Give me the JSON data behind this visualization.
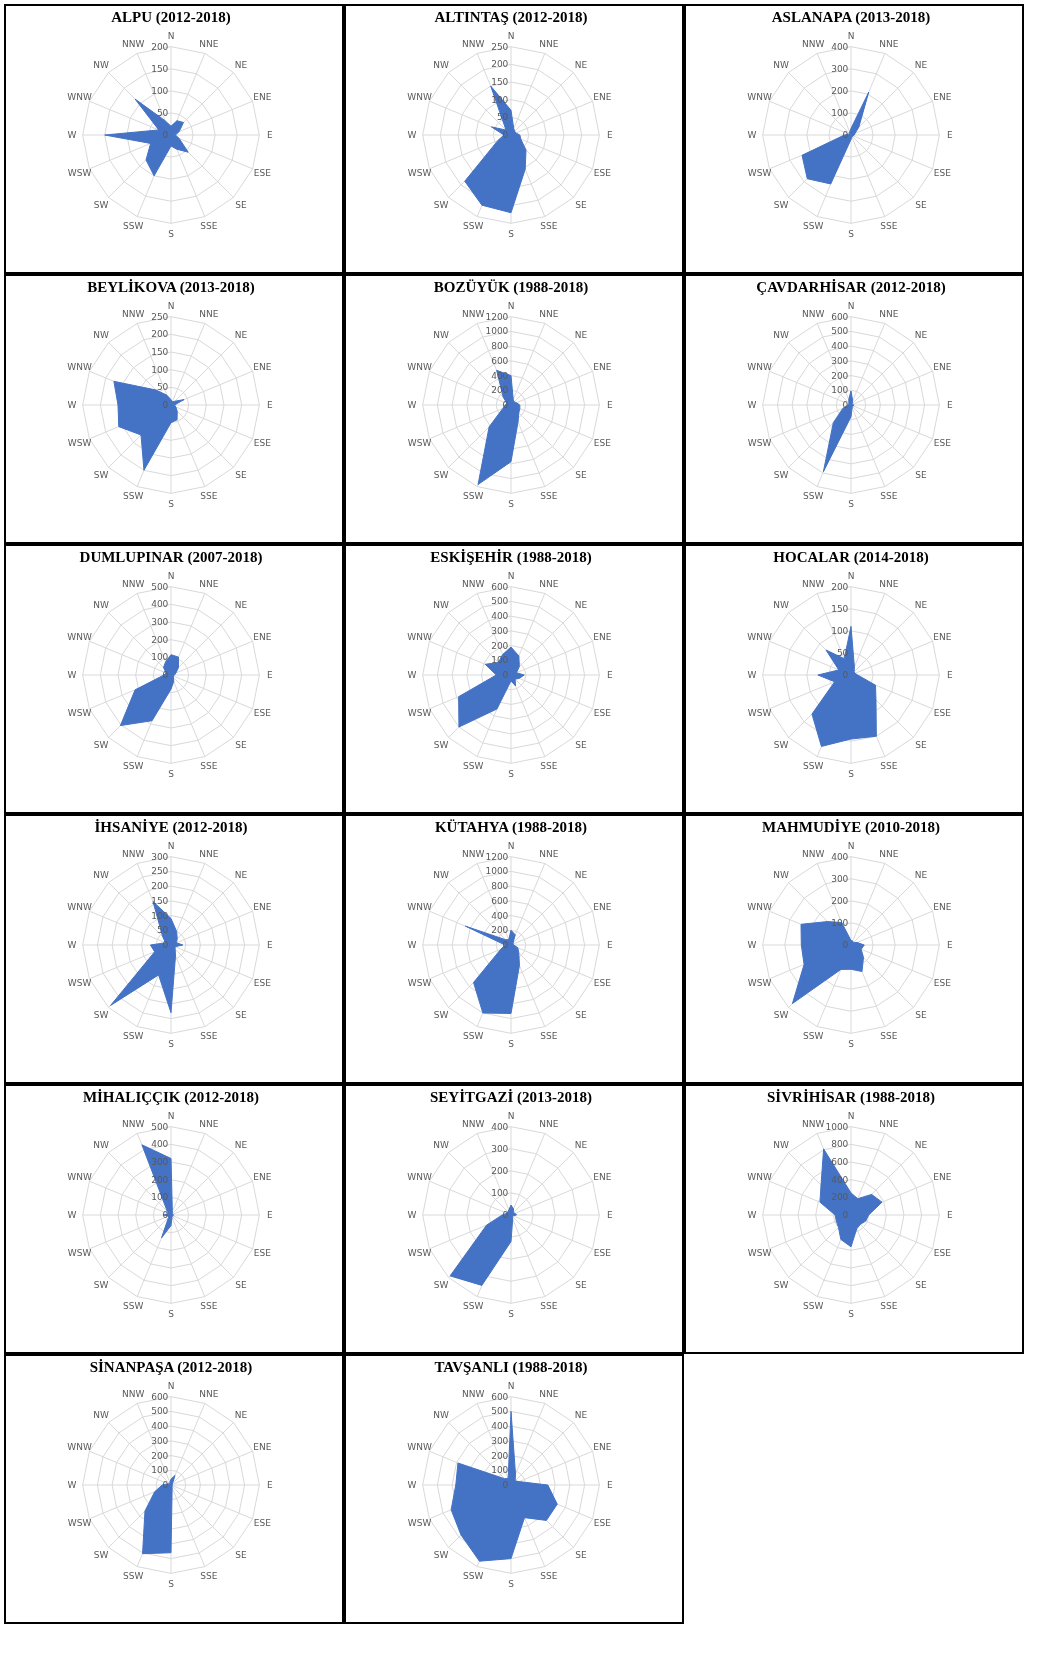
{
  "chart_data": [
    {
      "type": "radar",
      "title": "ALPU  (2012-2018)",
      "categories": [
        "N",
        "NNE",
        "NE",
        "ENE",
        "E",
        "ESE",
        "SE",
        "SSE",
        "S",
        "SSW",
        "SW",
        "WSW",
        "W",
        "WNW",
        "NW",
        "NNW"
      ],
      "series": [
        {
          "color": "#4472c4",
          "values": [
            20,
            35,
            40,
            20,
            10,
            20,
            55,
            35,
            25,
            100,
            80,
            50,
            150,
            30,
            115,
            35
          ]
        }
      ],
      "ylim": [
        0,
        200
      ],
      "yticks": [
        0,
        50,
        100,
        150,
        200
      ],
      "grid": true
    },
    {
      "type": "radar",
      "title": "ALTINTAŞ (2012-2018)",
      "categories": [
        "N",
        "NNE",
        "NE",
        "ENE",
        "E",
        "ESE",
        "SE",
        "SSE",
        "S",
        "SSW",
        "SW",
        "WSW",
        "W",
        "WNW",
        "NW",
        "NNW"
      ],
      "series": [
        {
          "color": "#4472c4",
          "values": [
            70,
            20,
            15,
            15,
            25,
            30,
            60,
            105,
            220,
            215,
            185,
            40,
            20,
            60,
            20,
            150
          ]
        }
      ],
      "ylim": [
        0,
        250
      ],
      "yticks": [
        0,
        50,
        100,
        150,
        200,
        250
      ],
      "grid": true
    },
    {
      "type": "radar",
      "title": "ASLANAPA (2013-2018)",
      "categories": [
        "N",
        "NNE",
        "NE",
        "ENE",
        "E",
        "ESE",
        "SE",
        "SSE",
        "S",
        "SSW",
        "SW",
        "WSW",
        "W",
        "WNW",
        "NW",
        "NNW"
      ],
      "series": [
        {
          "color": "#4472c4",
          "values": [
            30,
            210,
            50,
            20,
            15,
            10,
            10,
            10,
            20,
            240,
            280,
            240,
            30,
            10,
            10,
            15
          ]
        }
      ],
      "ylim": [
        0,
        400
      ],
      "yticks": [
        0,
        100,
        200,
        300,
        400
      ],
      "grid": true
    },
    {
      "type": "radar",
      "title": "BEYLİKOVA  (2013-2018)",
      "categories": [
        "N",
        "NNE",
        "NE",
        "ENE",
        "E",
        "ESE",
        "SE",
        "SSE",
        "S",
        "SSW",
        "SW",
        "WSW",
        "W",
        "WNW",
        "NW",
        "NNW"
      ],
      "series": [
        {
          "color": "#4472c4",
          "values": [
            15,
            10,
            15,
            40,
            10,
            15,
            25,
            45,
            50,
            200,
            120,
            160,
            150,
            175,
            60,
            30
          ]
        }
      ],
      "ylim": [
        0,
        250
      ],
      "yticks": [
        0,
        50,
        100,
        150,
        200,
        250
      ],
      "grid": true
    },
    {
      "type": "radar",
      "title": "BOZÜYÜK  (1988-2018)",
      "categories": [
        "N",
        "NNE",
        "NE",
        "ENE",
        "E",
        "ESE",
        "SE",
        "SSE",
        "S",
        "SSW",
        "SW",
        "WSW",
        "W",
        "WNW",
        "NW",
        "NNW"
      ],
      "series": [
        {
          "color": "#4472c4",
          "values": [
            400,
            80,
            60,
            80,
            120,
            130,
            150,
            250,
            770,
            1170,
            420,
            120,
            80,
            60,
            150,
            510
          ]
        }
      ],
      "ylim": [
        0,
        1200
      ],
      "yticks": [
        0,
        200,
        400,
        600,
        800,
        1000,
        1200
      ],
      "grid": true
    },
    {
      "type": "radar",
      "title": "ÇAVDARHİSAR (2012-2018)",
      "categories": [
        "N",
        "NNE",
        "NE",
        "ENE",
        "E",
        "ESE",
        "SE",
        "SSE",
        "S",
        "SSW",
        "SW",
        "WSW",
        "W",
        "WNW",
        "NW",
        "NNW"
      ],
      "series": [
        {
          "color": "#4472c4",
          "values": [
            95,
            30,
            10,
            10,
            20,
            15,
            15,
            20,
            80,
            490,
            170,
            60,
            20,
            15,
            20,
            40
          ]
        }
      ],
      "ylim": [
        0,
        600
      ],
      "yticks": [
        0,
        100,
        200,
        300,
        400,
        500,
        600
      ],
      "grid": true
    },
    {
      "type": "radar",
      "title": "DUMLUPINAR (2007-2018)",
      "categories": [
        "N",
        "NNE",
        "NE",
        "ENE",
        "E",
        "ESE",
        "SE",
        "SSE",
        "S",
        "SSW",
        "SW",
        "WSW",
        "W",
        "WNW",
        "NW",
        "NNW"
      ],
      "series": [
        {
          "color": "#4472c4",
          "values": [
            115,
            110,
            60,
            30,
            20,
            15,
            20,
            40,
            80,
            280,
            405,
            220,
            40,
            30,
            60,
            80
          ]
        }
      ],
      "ylim": [
        0,
        500
      ],
      "yticks": [
        0,
        100,
        200,
        300,
        400,
        500
      ],
      "grid": true
    },
    {
      "type": "radar",
      "title": "ESKİŞEHİR (1988-2018)",
      "categories": [
        "N",
        "NNE",
        "NE",
        "ENE",
        "E",
        "ESE",
        "SE",
        "SSE",
        "S",
        "SSW",
        "SW",
        "WSW",
        "W",
        "WNW",
        "NW",
        "NNW"
      ],
      "series": [
        {
          "color": "#4472c4",
          "values": [
            190,
            140,
            80,
            40,
            90,
            60,
            40,
            80,
            40,
            250,
            500,
            385,
            100,
            190,
            120,
            150
          ]
        }
      ],
      "ylim": [
        0,
        600
      ],
      "yticks": [
        0,
        100,
        200,
        300,
        400,
        500,
        600
      ],
      "grid": true
    },
    {
      "type": "radar",
      "title": "HOCALAR  (2014-2018)",
      "categories": [
        "N",
        "NNE",
        "NE",
        "ENE",
        "E",
        "ESE",
        "SE",
        "SSE",
        "S",
        "SSW",
        "SW",
        "WSW",
        "W",
        "WNW",
        "NW",
        "NNW"
      ],
      "series": [
        {
          "color": "#4472c4",
          "values": [
            110,
            20,
            10,
            10,
            15,
            60,
            80,
            150,
            145,
            175,
            125,
            40,
            75,
            30,
            80,
            40
          ]
        }
      ],
      "ylim": [
        0,
        200
      ],
      "yticks": [
        0,
        50,
        100,
        150,
        200
      ],
      "grid": true
    },
    {
      "type": "radar",
      "title": "İHSANİYE  (2012-2018)",
      "categories": [
        "N",
        "NNE",
        "NE",
        "ENE",
        "E",
        "ESE",
        "SE",
        "SSE",
        "S",
        "SSW",
        "SW",
        "WSW",
        "W",
        "WNW",
        "NW",
        "NNW"
      ],
      "series": [
        {
          "color": "#4472c4",
          "values": [
            90,
            50,
            30,
            20,
            40,
            15,
            20,
            40,
            230,
            110,
            290,
            60,
            70,
            20,
            40,
            160
          ]
        }
      ],
      "ylim": [
        0,
        300
      ],
      "yticks": [
        0,
        50,
        100,
        150,
        200,
        250,
        300
      ],
      "grid": true
    },
    {
      "type": "radar",
      "title": "KÜTAHYA  (1988-2018)",
      "categories": [
        "N",
        "NNE",
        "NE",
        "ENE",
        "E",
        "ESE",
        "SE",
        "SSE",
        "S",
        "SSW",
        "SW",
        "WSW",
        "W",
        "WNW",
        "NW",
        "NNW"
      ],
      "series": [
        {
          "color": "#4472c4",
          "values": [
            200,
            150,
            40,
            30,
            40,
            100,
            150,
            300,
            930,
            1000,
            720,
            150,
            80,
            670,
            100,
            80
          ]
        }
      ],
      "ylim": [
        0,
        1200
      ],
      "yticks": [
        0,
        200,
        400,
        600,
        800,
        1000,
        1200
      ],
      "grid": true
    },
    {
      "type": "radar",
      "title": "MAHMUDİYE (2010-2018)",
      "categories": [
        "N",
        "NNE",
        "NE",
        "ENE",
        "E",
        "ESE",
        "SE",
        "SSE",
        "S",
        "SSW",
        "SW",
        "WSW",
        "W",
        "WNW",
        "NW",
        "NNW"
      ],
      "series": [
        {
          "color": "#4472c4",
          "values": [
            20,
            20,
            15,
            30,
            60,
            50,
            80,
            130,
            110,
            120,
            375,
            230,
            225,
            245,
            150,
            110
          ]
        }
      ],
      "ylim": [
        0,
        400
      ],
      "yticks": [
        0,
        100,
        200,
        300,
        400
      ],
      "grid": true
    },
    {
      "type": "radar",
      "title": "MİHALIÇÇIK (2012-2018)",
      "categories": [
        "N",
        "NNE",
        "NE",
        "ENE",
        "E",
        "ESE",
        "SE",
        "SSE",
        "S",
        "SSW",
        "SW",
        "WSW",
        "W",
        "WNW",
        "NW",
        "NNW"
      ],
      "series": [
        {
          "color": "#4472c4",
          "values": [
            320,
            20,
            10,
            10,
            15,
            10,
            10,
            15,
            60,
            140,
            20,
            15,
            45,
            15,
            30,
            430
          ]
        }
      ],
      "ylim": [
        0,
        500
      ],
      "yticks": [
        0,
        100,
        200,
        300,
        400,
        500
      ],
      "grid": true
    },
    {
      "type": "radar",
      "title": "SEYİTGAZİ  (2013-2018)",
      "categories": [
        "N",
        "NNE",
        "NE",
        "ENE",
        "E",
        "ESE",
        "SE",
        "SSE",
        "S",
        "SSW",
        "SW",
        "WSW",
        "W",
        "WNW",
        "NW",
        "NNW"
      ],
      "series": [
        {
          "color": "#4472c4",
          "values": [
            45,
            30,
            15,
            20,
            25,
            10,
            10,
            20,
            120,
            345,
            390,
            120,
            40,
            20,
            20,
            25
          ]
        }
      ],
      "ylim": [
        0,
        400
      ],
      "yticks": [
        0,
        100,
        200,
        300,
        400
      ],
      "grid": true
    },
    {
      "type": "radar",
      "title": "SİVRİHİSAR (1988-2018)",
      "categories": [
        "N",
        "NNE",
        "NE",
        "ENE",
        "E",
        "ESE",
        "SE",
        "SSE",
        "S",
        "SSW",
        "SW",
        "WSW",
        "W",
        "WNW",
        "NW",
        "NNW"
      ],
      "series": [
        {
          "color": "#4472c4",
          "values": [
            250,
            200,
            330,
            380,
            200,
            180,
            150,
            170,
            360,
            300,
            200,
            180,
            180,
            380,
            480,
            810
          ]
        }
      ],
      "ylim": [
        0,
        1000
      ],
      "yticks": [
        0,
        200,
        400,
        600,
        800,
        1000
      ],
      "grid": true
    },
    {
      "type": "radar",
      "title": "SİNANPAŞA (2012-2018)",
      "categories": [
        "N",
        "NNE",
        "NE",
        "ENE",
        "E",
        "ESE",
        "SE",
        "SSE",
        "S",
        "SSW",
        "SW",
        "WSW",
        "W",
        "WNW",
        "NW",
        "NNW"
      ],
      "series": [
        {
          "color": "#4472c4",
          "values": [
            40,
            70,
            15,
            10,
            10,
            10,
            10,
            20,
            460,
            505,
            250,
            120,
            60,
            20,
            10,
            20
          ]
        }
      ],
      "ylim": [
        0,
        600
      ],
      "yticks": [
        0,
        100,
        200,
        300,
        400,
        500,
        600
      ],
      "grid": true
    },
    {
      "type": "radar",
      "title": "TAVŞANLI (1988-2018)",
      "categories": [
        "N",
        "NNE",
        "NE",
        "ENE",
        "E",
        "ESE",
        "SE",
        "SSE",
        "S",
        "SSW",
        "SW",
        "WSW",
        "W",
        "WNW",
        "NW",
        "NNW"
      ],
      "series": [
        {
          "color": "#4472c4",
          "values": [
            500,
            80,
            40,
            60,
            250,
            340,
            340,
            240,
            500,
            560,
            480,
            440,
            375,
            390,
            60,
            50
          ]
        }
      ],
      "ylim": [
        0,
        600
      ],
      "yticks": [
        0,
        100,
        200,
        300,
        400,
        500,
        600
      ],
      "grid": true
    }
  ]
}
